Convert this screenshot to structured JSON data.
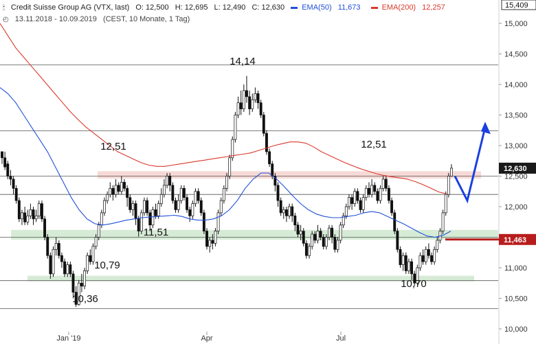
{
  "header": {
    "line1": {
      "icon": "candlestick-icon",
      "title": "Credit Suisse Group AG (VTX, last)",
      "open": "O: 12,500",
      "high": "H: 12,695",
      "low": "L: 12,490",
      "close": "C: 12,630",
      "ema50_label": "EMA(50)",
      "ema50_value": "11,673",
      "ema200_label": "EMA(200)",
      "ema200_value": "12,257"
    },
    "line2": {
      "icon": "clock-icon",
      "range": "13.11.2018 - 10.09.2019",
      "info": "(CEST, 10 Monate, 1 Tag)"
    }
  },
  "colors": {
    "ema50": "#1f4fd8",
    "ema200": "#d9382b",
    "support_zone": "#cfe8cf",
    "resistance_zone": "#f5d2cf",
    "forecast_arrow": "#1a3fe0",
    "current_price_tag": "#1a1a1a",
    "level_tag": "#b81d1d"
  },
  "chart_data": {
    "type": "candlestick",
    "ylim": [
      10.0,
      15.409
    ],
    "y_ticks": [
      "15,409",
      "15,000",
      "14,500",
      "14,000",
      "13,500",
      "13,000",
      "12,500",
      "12,000",
      "11,500",
      "11,000",
      "10,500",
      "10,000"
    ],
    "x_ticks": [
      "Jan '19",
      "Apr",
      "Jul"
    ],
    "current_price": {
      "value": 12.63,
      "label": "12,630"
    },
    "marked_level": {
      "value": 11.463,
      "label": "11,463"
    },
    "annotations": [
      {
        "text": "14,14",
        "value": 14.14
      },
      {
        "text": "12,51",
        "value": 12.51
      },
      {
        "text": "12,51",
        "value": 12.51
      },
      {
        "text": "11,51",
        "value": 11.51
      },
      {
        "text": "10,79",
        "value": 10.79
      },
      {
        "text": "10,36",
        "value": 10.36
      },
      {
        "text": "10,70",
        "value": 10.7
      }
    ],
    "horizontal_lines": [
      14.32,
      13.24,
      12.5,
      12.2,
      11.5,
      10.79,
      10.33
    ],
    "zones": [
      {
        "kind": "resistance",
        "from": 12.46,
        "to": 12.58
      },
      {
        "kind": "support",
        "from": 11.46,
        "to": 11.62
      },
      {
        "kind": "support",
        "from": 10.78,
        "to": 10.87
      }
    ],
    "candles": [
      [
        12.9,
        12.8,
        12.85,
        12.7
      ],
      [
        12.8,
        12.65,
        12.9,
        12.6
      ],
      [
        12.7,
        12.5,
        12.75,
        12.45
      ],
      [
        12.5,
        12.45,
        12.6,
        12.35
      ],
      [
        12.45,
        12.3,
        12.5,
        12.2
      ],
      [
        12.3,
        12.1,
        12.35,
        12.05
      ],
      [
        12.1,
        11.8,
        12.15,
        11.75
      ],
      [
        11.8,
        11.9,
        11.95,
        11.7
      ],
      [
        11.9,
        11.75,
        12.0,
        11.7
      ],
      [
        11.75,
        11.85,
        11.95,
        11.7
      ],
      [
        11.85,
        11.95,
        12.05,
        11.8
      ],
      [
        11.95,
        11.8,
        12.0,
        11.7
      ],
      [
        11.8,
        11.85,
        11.95,
        11.75
      ],
      [
        11.85,
        12.05,
        12.1,
        11.8
      ],
      [
        12.05,
        11.8,
        12.1,
        11.75
      ],
      [
        11.8,
        11.5,
        11.85,
        11.45
      ],
      [
        11.5,
        11.2,
        11.55,
        11.15
      ],
      [
        11.2,
        10.9,
        11.25,
        10.82
      ],
      [
        10.9,
        11.3,
        11.35,
        10.85
      ],
      [
        11.3,
        11.4,
        11.5,
        11.2
      ],
      [
        11.4,
        11.2,
        11.45,
        11.15
      ],
      [
        11.2,
        11.1,
        11.25,
        11.0
      ],
      [
        11.1,
        10.9,
        11.15,
        10.85
      ],
      [
        10.9,
        11.05,
        11.1,
        10.85
      ],
      [
        11.05,
        10.9,
        11.1,
        10.85
      ],
      [
        10.9,
        10.6,
        10.95,
        10.5
      ],
      [
        10.6,
        10.4,
        10.7,
        10.36
      ],
      [
        10.4,
        10.75,
        10.8,
        10.38
      ],
      [
        10.75,
        10.7,
        10.9,
        10.6
      ],
      [
        10.7,
        10.95,
        11.0,
        10.65
      ],
      [
        10.95,
        11.2,
        11.25,
        10.9
      ],
      [
        11.2,
        11.1,
        11.3,
        11.05
      ],
      [
        11.1,
        11.35,
        11.4,
        11.05
      ],
      [
        11.35,
        11.5,
        11.55,
        11.3
      ],
      [
        11.5,
        11.7,
        11.75,
        11.45
      ],
      [
        11.7,
        11.9,
        11.95,
        11.65
      ],
      [
        11.9,
        12.1,
        12.15,
        11.85
      ],
      [
        12.1,
        12.2,
        12.25,
        12.05
      ],
      [
        12.2,
        12.3,
        12.4,
        12.15
      ],
      [
        12.3,
        12.2,
        12.35,
        12.1
      ],
      [
        12.2,
        12.35,
        12.45,
        12.15
      ],
      [
        12.35,
        12.25,
        12.4,
        12.2
      ],
      [
        12.25,
        12.4,
        12.5,
        12.2
      ],
      [
        12.4,
        12.3,
        12.45,
        12.25
      ],
      [
        12.3,
        12.15,
        12.35,
        12.0
      ],
      [
        12.15,
        11.95,
        12.2,
        11.9
      ],
      [
        11.95,
        12.05,
        12.1,
        11.85
      ],
      [
        12.05,
        11.8,
        12.1,
        11.7
      ],
      [
        11.8,
        11.6,
        11.85,
        11.51
      ],
      [
        11.6,
        11.9,
        11.95,
        11.55
      ],
      [
        11.9,
        12.1,
        12.15,
        11.85
      ],
      [
        12.1,
        11.9,
        12.15,
        11.85
      ],
      [
        11.9,
        11.7,
        11.95,
        11.6
      ],
      [
        11.7,
        11.95,
        12.0,
        11.65
      ],
      [
        11.95,
        11.85,
        12.05,
        11.8
      ],
      [
        11.85,
        12.05,
        12.1,
        11.8
      ],
      [
        12.05,
        12.2,
        12.3,
        12.0
      ],
      [
        12.2,
        12.35,
        12.45,
        12.15
      ],
      [
        12.35,
        12.5,
        12.55,
        12.3
      ],
      [
        12.5,
        12.35,
        12.55,
        12.25
      ],
      [
        12.35,
        12.1,
        12.4,
        12.05
      ],
      [
        12.1,
        11.95,
        12.15,
        11.9
      ],
      [
        11.95,
        12.1,
        12.2,
        11.9
      ],
      [
        12.1,
        12.3,
        12.35,
        12.05
      ],
      [
        12.3,
        12.15,
        12.35,
        12.1
      ],
      [
        12.15,
        11.95,
        12.2,
        11.9
      ],
      [
        11.95,
        11.85,
        12.0,
        11.75
      ],
      [
        11.85,
        12.05,
        12.1,
        11.8
      ],
      [
        12.05,
        12.25,
        12.3,
        12.0
      ],
      [
        12.25,
        12.1,
        12.3,
        12.05
      ],
      [
        12.1,
        11.9,
        12.15,
        11.85
      ],
      [
        11.9,
        11.6,
        11.95,
        11.55
      ],
      [
        11.6,
        11.35,
        11.65,
        11.3
      ],
      [
        11.35,
        11.45,
        11.5,
        11.25
      ],
      [
        11.45,
        11.4,
        11.55,
        11.3
      ],
      [
        11.4,
        11.6,
        11.65,
        11.35
      ],
      [
        11.6,
        11.9,
        11.95,
        11.55
      ],
      [
        11.9,
        12.1,
        12.15,
        11.85
      ],
      [
        12.1,
        12.3,
        12.35,
        12.05
      ],
      [
        12.3,
        12.5,
        12.55,
        12.25
      ],
      [
        12.5,
        12.8,
        12.85,
        12.45
      ],
      [
        12.8,
        13.1,
        13.15,
        12.75
      ],
      [
        13.1,
        13.5,
        13.55,
        13.05
      ],
      [
        13.5,
        13.7,
        13.8,
        13.45
      ],
      [
        13.7,
        13.6,
        13.9,
        13.5
      ],
      [
        13.6,
        13.9,
        14.0,
        13.55
      ],
      [
        13.9,
        13.8,
        14.14,
        13.7
      ],
      [
        13.8,
        13.6,
        13.9,
        13.5
      ],
      [
        13.6,
        13.75,
        13.85,
        13.55
      ],
      [
        13.75,
        13.85,
        13.95,
        13.7
      ],
      [
        13.85,
        13.7,
        13.9,
        13.6
      ],
      [
        13.7,
        13.5,
        13.75,
        13.45
      ],
      [
        13.5,
        13.2,
        13.55,
        13.15
      ],
      [
        13.2,
        12.9,
        13.25,
        12.85
      ],
      [
        12.9,
        12.7,
        12.95,
        12.65
      ],
      [
        12.7,
        12.5,
        12.75,
        12.45
      ],
      [
        12.5,
        12.35,
        12.55,
        12.25
      ],
      [
        12.35,
        12.1,
        12.4,
        12.0
      ],
      [
        12.1,
        11.9,
        12.15,
        11.85
      ],
      [
        11.9,
        11.95,
        12.0,
        11.8
      ],
      [
        11.95,
        11.85,
        12.0,
        11.75
      ],
      [
        11.85,
        12.0,
        12.05,
        11.8
      ],
      [
        12.0,
        11.85,
        12.05,
        11.75
      ],
      [
        11.85,
        11.7,
        11.9,
        11.6
      ],
      [
        11.7,
        11.55,
        11.75,
        11.5
      ],
      [
        11.55,
        11.6,
        11.7,
        11.45
      ],
      [
        11.6,
        11.4,
        11.65,
        11.35
      ],
      [
        11.4,
        11.2,
        11.45,
        11.15
      ],
      [
        11.2,
        11.35,
        11.4,
        11.15
      ],
      [
        11.35,
        11.55,
        11.6,
        11.3
      ],
      [
        11.55,
        11.45,
        11.6,
        11.4
      ],
      [
        11.45,
        11.6,
        11.7,
        11.4
      ],
      [
        11.6,
        11.5,
        11.65,
        11.45
      ],
      [
        11.5,
        11.35,
        11.55,
        11.3
      ],
      [
        11.35,
        11.5,
        11.55,
        11.3
      ],
      [
        11.5,
        11.65,
        11.7,
        11.45
      ],
      [
        11.65,
        11.5,
        11.7,
        11.4
      ],
      [
        11.5,
        11.3,
        11.55,
        11.25
      ],
      [
        11.3,
        11.45,
        11.5,
        11.25
      ],
      [
        11.45,
        11.7,
        11.75,
        11.4
      ],
      [
        11.7,
        11.85,
        11.9,
        11.65
      ],
      [
        11.85,
        12.0,
        12.05,
        11.8
      ],
      [
        12.0,
        12.15,
        12.2,
        11.95
      ],
      [
        12.15,
        12.05,
        12.2,
        11.95
      ],
      [
        12.05,
        12.25,
        12.3,
        12.0
      ],
      [
        12.25,
        12.1,
        12.3,
        12.05
      ],
      [
        12.1,
        11.95,
        12.15,
        11.9
      ],
      [
        11.95,
        12.15,
        12.2,
        11.9
      ],
      [
        12.15,
        12.3,
        12.35,
        12.1
      ],
      [
        12.3,
        12.2,
        12.4,
        12.15
      ],
      [
        12.2,
        12.35,
        12.45,
        12.15
      ],
      [
        12.35,
        12.25,
        12.4,
        12.2
      ],
      [
        12.25,
        12.1,
        12.3,
        12.05
      ],
      [
        12.1,
        12.3,
        12.35,
        12.05
      ],
      [
        12.3,
        12.45,
        12.5,
        12.25
      ],
      [
        12.45,
        12.3,
        12.5,
        12.25
      ],
      [
        12.3,
        12.1,
        12.35,
        12.05
      ],
      [
        12.1,
        11.9,
        12.15,
        11.85
      ],
      [
        11.9,
        11.6,
        11.95,
        11.55
      ],
      [
        11.6,
        11.3,
        11.65,
        11.25
      ],
      [
        11.3,
        11.05,
        11.35,
        11.0
      ],
      [
        11.05,
        11.2,
        11.25,
        10.95
      ],
      [
        11.2,
        10.95,
        11.25,
        10.9
      ],
      [
        10.95,
        11.1,
        11.15,
        10.9
      ],
      [
        11.1,
        10.9,
        11.15,
        10.8
      ],
      [
        10.9,
        10.75,
        10.95,
        10.7
      ],
      [
        10.75,
        11.0,
        11.05,
        10.72
      ],
      [
        11.0,
        11.2,
        11.25,
        10.95
      ],
      [
        11.2,
        11.1,
        11.3,
        11.05
      ],
      [
        11.1,
        11.3,
        11.35,
        11.05
      ],
      [
        11.3,
        11.2,
        11.4,
        11.15
      ],
      [
        11.2,
        11.1,
        11.25,
        11.05
      ],
      [
        11.1,
        11.3,
        11.35,
        11.05
      ],
      [
        11.3,
        11.45,
        11.5,
        11.25
      ],
      [
        11.45,
        11.6,
        11.65,
        11.4
      ],
      [
        11.6,
        11.9,
        11.95,
        11.55
      ],
      [
        11.9,
        12.2,
        12.25,
        11.85
      ],
      [
        12.2,
        12.5,
        12.55,
        12.15
      ],
      [
        12.5,
        12.63,
        12.695,
        12.49
      ]
    ],
    "ema200": [
      15.0,
      14.8,
      14.6,
      14.45,
      14.3,
      14.15,
      14.0,
      13.85,
      13.7,
      13.55,
      13.42,
      13.3,
      13.2,
      13.1,
      13.0,
      12.9,
      12.84,
      12.78,
      12.72,
      12.68,
      12.66,
      12.66,
      12.68,
      12.7,
      12.72,
      12.74,
      12.76,
      12.78,
      12.8,
      12.82,
      12.84,
      12.86,
      12.88,
      12.92,
      12.96,
      13.0,
      13.03,
      13.06,
      13.06,
      13.04,
      12.98,
      12.9,
      12.84,
      12.78,
      12.72,
      12.67,
      12.62,
      12.58,
      12.54,
      12.51,
      12.49,
      12.47,
      12.45,
      12.41,
      12.36,
      12.3,
      12.24,
      12.21
    ],
    "ema50": [
      13.95,
      13.85,
      13.7,
      13.5,
      13.3,
      13.1,
      12.9,
      12.65,
      12.4,
      12.15,
      11.95,
      11.8,
      11.72,
      11.7,
      11.72,
      11.75,
      11.78,
      11.8,
      11.82,
      11.83,
      11.84,
      11.85,
      11.86,
      11.84,
      11.8,
      11.78,
      11.78,
      11.8,
      11.85,
      11.95,
      12.1,
      12.3,
      12.45,
      12.55,
      12.55,
      12.45,
      12.32,
      12.18,
      12.05,
      11.95,
      11.88,
      11.84,
      11.82,
      11.82,
      11.84,
      11.86,
      11.9,
      11.92,
      11.9,
      11.84,
      11.78,
      11.72,
      11.65,
      11.58,
      11.52,
      11.5,
      11.53,
      11.6
    ],
    "forecast": [
      12.5,
      12.1,
      13.3
    ],
    "price_axis_tag_label": "12,630"
  }
}
